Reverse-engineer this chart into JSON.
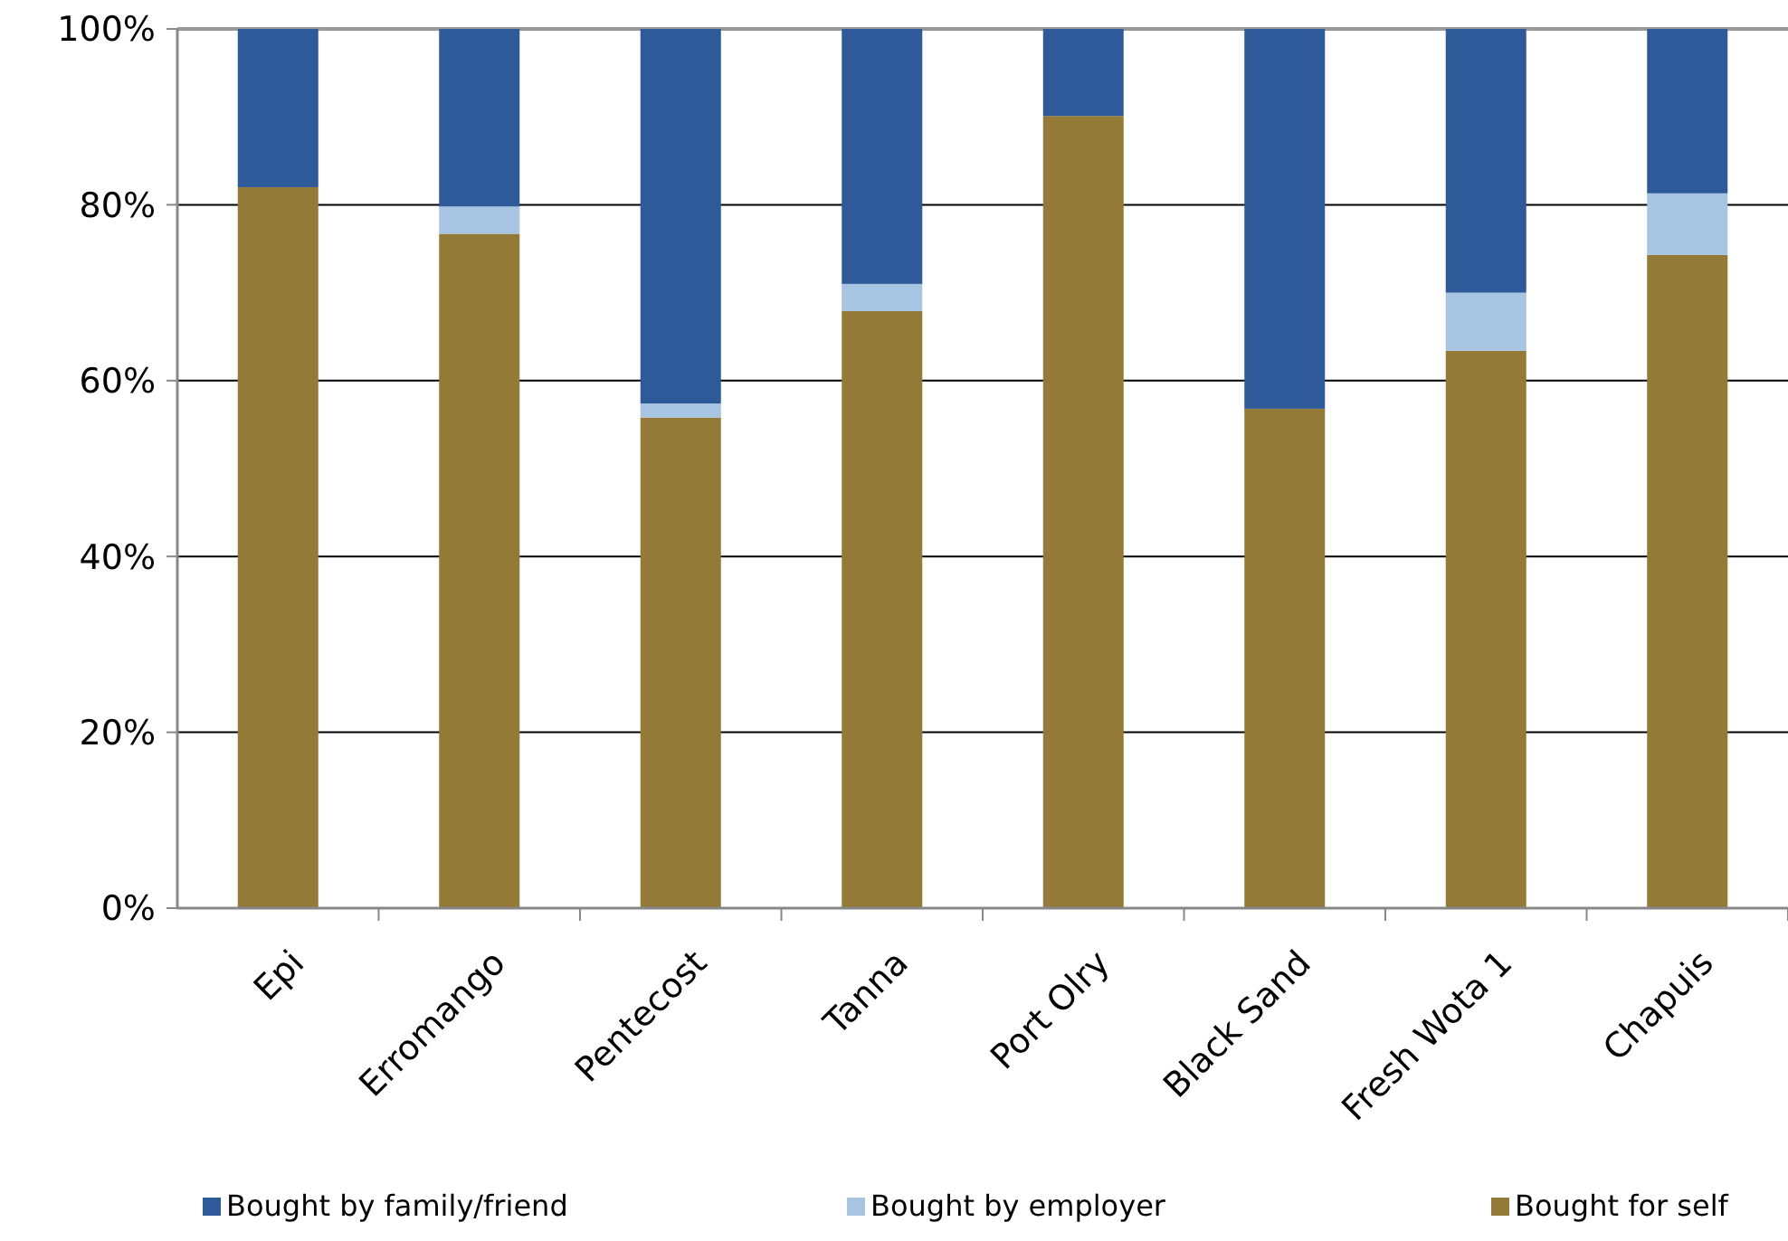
{
  "chart_data": {
    "type": "bar",
    "stacked": true,
    "categories": [
      "Epi",
      "Erromango",
      "Pentecost",
      "Tanna",
      "Port Olry",
      "Black Sand",
      "Fresh Wota 1",
      "Chapuis"
    ],
    "series": [
      {
        "name": "Bought for self",
        "color": "#937a36",
        "values": [
          82,
          76.7,
          55.8,
          67.9,
          90.1,
          56.8,
          63.4,
          74.3
        ]
      },
      {
        "name": "Bought by employer",
        "color": "#a7c4e2",
        "values": [
          0,
          3.1,
          1.6,
          3.1,
          0,
          0,
          6.6,
          7
        ]
      },
      {
        "name": "Bought by family/friend",
        "color": "#2e5a9a",
        "values": [
          18,
          20.2,
          42.6,
          29,
          9.9,
          43.2,
          30,
          18.7
        ]
      }
    ],
    "ylim": [
      0,
      100
    ],
    "yticks": [
      {
        "value": 0,
        "label": "0%"
      },
      {
        "value": 20,
        "label": "20%"
      },
      {
        "value": 40,
        "label": "40%"
      },
      {
        "value": 60,
        "label": "60%"
      },
      {
        "value": 80,
        "label": "80%"
      },
      {
        "value": 100,
        "label": "100%"
      }
    ],
    "grid": "y",
    "legend": "bottom"
  }
}
